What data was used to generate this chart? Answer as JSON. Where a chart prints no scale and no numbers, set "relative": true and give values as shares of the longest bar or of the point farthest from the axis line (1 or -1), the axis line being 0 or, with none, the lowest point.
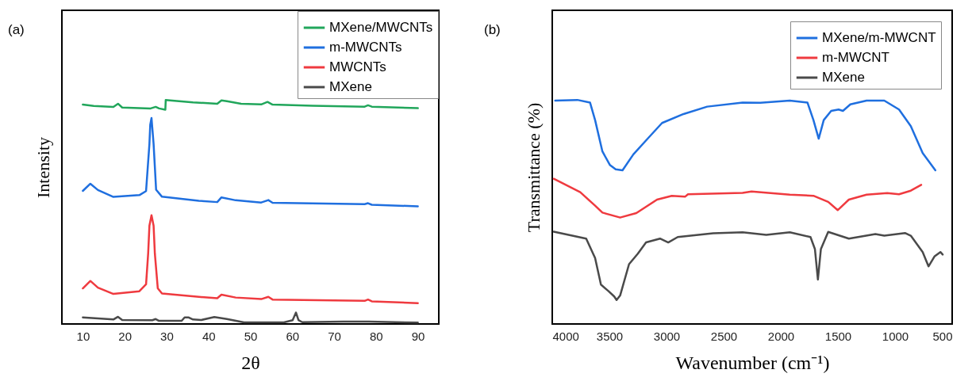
{
  "chart_data": [
    {
      "type": "line",
      "title": "(a)",
      "xlabel": "2θ",
      "ylabel": "Intensity",
      "relative": true,
      "xlim": [
        5,
        95
      ],
      "xticks": [
        10,
        20,
        30,
        40,
        50,
        60,
        70,
        80,
        90
      ],
      "grid": false,
      "legend": "top right",
      "series": [
        {
          "name": "MXene/MWCNTs",
          "color": "#21a65b",
          "x": [
            10,
            12.6,
            17.3,
            18.4,
            19.4,
            26.2,
            27.4,
            28.2,
            29.7,
            29.8,
            30.8,
            36.3,
            42.1,
            43.1,
            44.4,
            47.8,
            52.6,
            54.1,
            55.3,
            64.8,
            77.3,
            78.1,
            79.0,
            90
          ],
          "values": [
            0.979,
            0.973,
            0.969,
            0.983,
            0.966,
            0.962,
            0.969,
            0.962,
            0.956,
            1.0,
            0.998,
            0.989,
            0.983,
            0.998,
            0.994,
            0.983,
            0.98,
            0.991,
            0.979,
            0.974,
            0.97,
            0.976,
            0.97,
            0.963
          ]
        },
        {
          "name": "m-MWCNTs",
          "color": "#1f6fdf",
          "x": [
            10,
            11.8,
            13.6,
            17.3,
            23.5,
            25.1,
            25.9,
            26.1,
            26.4,
            26.9,
            27.5,
            28.9,
            37.7,
            42.1,
            43.1,
            46.5,
            52.6,
            54.3,
            55.3,
            77.3,
            78.1,
            79.0,
            90
          ],
          "values": [
            0.594,
            0.626,
            0.598,
            0.567,
            0.575,
            0.593,
            0.803,
            0.889,
            0.919,
            0.803,
            0.599,
            0.568,
            0.55,
            0.544,
            0.565,
            0.552,
            0.542,
            0.553,
            0.541,
            0.535,
            0.539,
            0.532,
            0.525
          ]
        },
        {
          "name": "MWCNTs",
          "color": "#ef3a3f",
          "x": [
            10,
            11.8,
            13.6,
            17.3,
            23.5,
            25.1,
            25.6,
            25.9,
            26.4,
            26.9,
            27.2,
            27.9,
            28.9,
            37.7,
            42.1,
            43.1,
            46.5,
            52.6,
            54.3,
            55.3,
            77.3,
            78.1,
            79.0,
            90
          ],
          "values": [
            0.159,
            0.192,
            0.162,
            0.134,
            0.146,
            0.177,
            0.314,
            0.438,
            0.485,
            0.438,
            0.314,
            0.159,
            0.136,
            0.121,
            0.115,
            0.131,
            0.118,
            0.111,
            0.121,
            0.109,
            0.103,
            0.109,
            0.101,
            0.093
          ]
        },
        {
          "name": "MXene",
          "color": "#4a4a4a",
          "x": [
            10,
            17.3,
            18.4,
            19.4,
            26.6,
            27.4,
            28.2,
            33.6,
            34.3,
            35.3,
            36.3,
            38.3,
            41.4,
            44.4,
            48.5,
            58.0,
            60.1,
            60.9,
            61.5,
            62.4,
            72.2,
            78.3,
            90
          ],
          "values": [
            0.029,
            0.02,
            0.032,
            0.018,
            0.017,
            0.022,
            0.014,
            0.014,
            0.029,
            0.029,
            0.02,
            0.018,
            0.031,
            0.022,
            0.007,
            0.007,
            0.017,
            0.051,
            0.017,
            0.008,
            0.011,
            0.011,
            0.006
          ]
        }
      ]
    },
    {
      "type": "line",
      "title": "(b)",
      "xlabel": "Wavenumber (cm⁻¹)",
      "ylabel": "Transmittance (%)",
      "relative": true,
      "xlim": [
        4000,
        500
      ],
      "xticks": [
        4000,
        3500,
        3000,
        2500,
        2000,
        1500,
        1000,
        500
      ],
      "grid": false,
      "legend": "top right",
      "series": [
        {
          "name": "MXene/m-MWCNT",
          "color": "#1f6fdf",
          "x": [
            3974,
            3780,
            3669,
            3625,
            3561,
            3496,
            3445,
            3385,
            3290,
            3160,
            3039,
            2851,
            2644,
            2334,
            2179,
            1921,
            1766,
            1714,
            1668,
            1624,
            1559,
            1494,
            1456,
            1391,
            1249,
            1094,
            965,
            862,
            758,
            647
          ],
          "values": [
            0.997,
            1.0,
            0.988,
            0.91,
            0.77,
            0.71,
            0.69,
            0.686,
            0.757,
            0.83,
            0.897,
            0.937,
            0.97,
            0.988,
            0.987,
            0.997,
            0.988,
            0.91,
            0.827,
            0.91,
            0.951,
            0.957,
            0.951,
            0.98,
            0.997,
            0.997,
            0.957,
            0.883,
            0.763,
            0.686
          ]
        },
        {
          "name": "m-MWCNT",
          "color": "#ef3a3f",
          "x": [
            3987,
            3755,
            3625,
            3561,
            3406,
            3264,
            3083,
            2954,
            2838,
            2812,
            2334,
            2256,
            1921,
            1714,
            1585,
            1502,
            1404,
            1249,
            1068,
            965,
            862,
            771
          ],
          "values": [
            0.648,
            0.588,
            0.528,
            0.497,
            0.475,
            0.495,
            0.555,
            0.572,
            0.568,
            0.579,
            0.585,
            0.591,
            0.577,
            0.572,
            0.545,
            0.508,
            0.555,
            0.577,
            0.584,
            0.579,
            0.595,
            0.621
          ]
        },
        {
          "name": "MXene",
          "color": "#4a4a4a",
          "x": [
            3987,
            3703,
            3625,
            3574,
            3509,
            3458,
            3437,
            3406,
            3328,
            3251,
            3179,
            3057,
            2985,
            2902,
            2592,
            2334,
            2127,
            1921,
            1740,
            1701,
            1675,
            1649,
            1585,
            1404,
            1172,
            1094,
            913,
            862,
            758,
            707,
            655,
            603,
            583
          ],
          "values": [
            0.412,
            0.381,
            0.294,
            0.176,
            0.147,
            0.123,
            0.107,
            0.127,
            0.267,
            0.314,
            0.364,
            0.381,
            0.364,
            0.388,
            0.405,
            0.409,
            0.398,
            0.409,
            0.388,
            0.334,
            0.198,
            0.334,
            0.411,
            0.381,
            0.401,
            0.394,
            0.406,
            0.394,
            0.321,
            0.257,
            0.301,
            0.321,
            0.31
          ]
        }
      ]
    }
  ]
}
